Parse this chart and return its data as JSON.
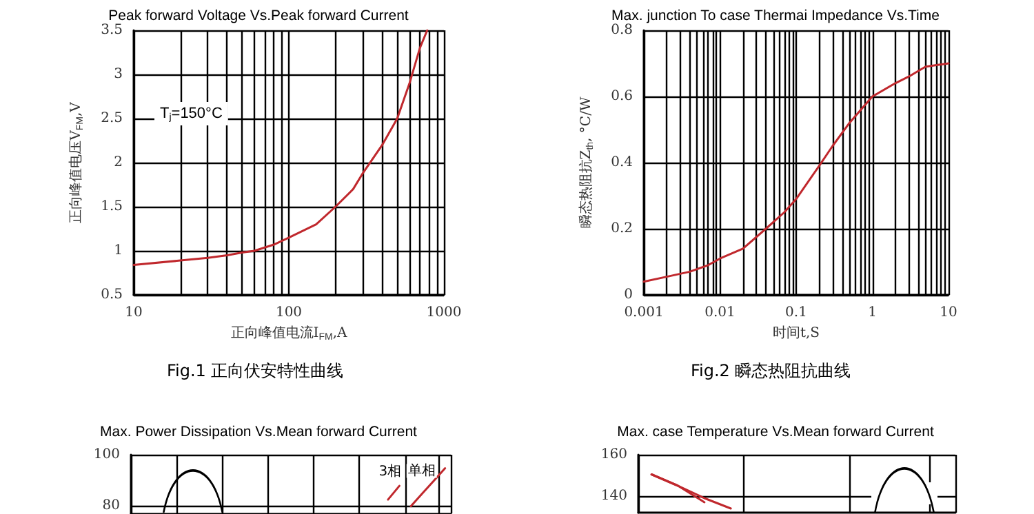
{
  "chart_data": [
    {
      "type": "line",
      "title": "Peak forward Voltage Vs.Peak forward Current",
      "xlabel": "正向峰值电流I$_{FM}$,A",
      "ylabel": "正向峰值电压V$_{FM}$,V",
      "annotations": [
        "T$_{j}$=150°C",
        "Fig.1 正向伏安特性曲线"
      ],
      "log": "x",
      "grid": true,
      "marker": "none",
      "xlim": [
        10,
        1000
      ],
      "xticks": [
        10,
        {
          "value": 20,
          "label": null
        },
        {
          "value": 30,
          "label": null
        },
        {
          "value": 40,
          "label": null
        },
        {
          "value": 50,
          "label": null
        },
        {
          "value": 60,
          "label": null
        },
        {
          "value": 70,
          "label": null
        },
        {
          "value": 80,
          "label": null
        },
        {
          "value": 90,
          "label": null
        },
        100,
        {
          "value": 200,
          "label": null
        },
        {
          "value": 300,
          "label": null
        },
        {
          "value": 400,
          "label": null
        },
        {
          "value": 500,
          "label": null
        },
        {
          "value": 600,
          "label": null
        },
        {
          "value": 700,
          "label": null
        },
        {
          "value": 800,
          "label": null
        },
        {
          "value": 900,
          "label": null
        },
        1000
      ],
      "ylim": [
        0.5,
        3.5
      ],
      "yticks": [
        0.5,
        1,
        1.5,
        2,
        2.5,
        3,
        3.5
      ],
      "series": [
        {
          "color": "#c0282d",
          "x": [
            10,
            20,
            30,
            40,
            50,
            60,
            80,
            100,
            150,
            200,
            260,
            300,
            400,
            500,
            600,
            700,
            780
          ],
          "values": [
            0.84,
            0.89,
            0.92,
            0.95,
            0.98,
            1.0,
            1.07,
            1.15,
            1.3,
            1.5,
            1.7,
            1.88,
            2.2,
            2.5,
            2.9,
            3.3,
            3.5
          ]
        }
      ]
    },
    {
      "type": "line",
      "title": "Max. junction To case Thermai Impedance Vs.Time",
      "xlabel": "时间t,S",
      "ylabel": "瞬态热阻抗Z$_{th}$, °C/W",
      "annotations": [
        "Fig.2 瞬态热阻抗曲线"
      ],
      "log": "x",
      "grid": true,
      "marker": "none",
      "xlim": [
        0.001,
        10
      ],
      "xticks": [
        0.001,
        {
          "value": 0.002,
          "label": null
        },
        {
          "value": 0.003,
          "label": null
        },
        {
          "value": 0.004,
          "label": null
        },
        {
          "value": 0.005,
          "label": null
        },
        {
          "value": 0.006,
          "label": null
        },
        {
          "value": 0.007,
          "label": null
        },
        {
          "value": 0.008,
          "label": null
        },
        {
          "value": 0.009,
          "label": null
        },
        0.01,
        {
          "value": 0.02,
          "label": null
        },
        {
          "value": 0.03,
          "label": null
        },
        {
          "value": 0.04,
          "label": null
        },
        {
          "value": 0.05,
          "label": null
        },
        {
          "value": 0.06,
          "label": null
        },
        {
          "value": 0.07,
          "label": null
        },
        {
          "value": 0.08,
          "label": null
        },
        {
          "value": 0.09,
          "label": null
        },
        0.1,
        {
          "value": 0.2,
          "label": null
        },
        {
          "value": 0.3,
          "label": null
        },
        {
          "value": 0.4,
          "label": null
        },
        {
          "value": 0.5,
          "label": null
        },
        {
          "value": 0.6,
          "label": null
        },
        {
          "value": 0.7,
          "label": null
        },
        {
          "value": 0.8,
          "label": null
        },
        {
          "value": 0.9,
          "label": null
        },
        1,
        {
          "value": 2,
          "label": null
        },
        {
          "value": 3,
          "label": null
        },
        {
          "value": 4,
          "label": null
        },
        {
          "value": 5,
          "label": null
        },
        {
          "value": 6,
          "label": null
        },
        {
          "value": 7,
          "label": null
        },
        {
          "value": 8,
          "label": null
        },
        {
          "value": 9,
          "label": null
        },
        10
      ],
      "ylim": [
        0,
        0.8
      ],
      "yticks": [
        0,
        0.2,
        0.4,
        0.6,
        0.8
      ],
      "series": [
        {
          "color": "#c0282d",
          "x": [
            0.001,
            0.002,
            0.004,
            0.007,
            0.01,
            0.02,
            0.04,
            0.07,
            0.1,
            0.2,
            0.3,
            0.5,
            1,
            2,
            3,
            5,
            10
          ],
          "values": [
            0.04,
            0.055,
            0.07,
            0.09,
            0.11,
            0.14,
            0.2,
            0.25,
            0.29,
            0.39,
            0.45,
            0.52,
            0.6,
            0.64,
            0.66,
            0.69,
            0.7
          ]
        }
      ]
    },
    {
      "type": "line",
      "title": "Max. Power Dissipation Vs.Mean forward Current",
      "grid": true,
      "marker": "none",
      "tick_labels": "y",
      "categories": [
        null,
        null,
        null,
        null,
        null,
        null,
        null,
        null,
        null,
        null,
        null,
        null,
        null,
        null,
        null,
        null,
        null,
        null,
        null,
        null,
        null,
        null,
        null,
        null,
        null,
        null,
        null,
        null
      ],
      "ylim": [
        77,
        100
      ],
      "yticks": [
        80,
        100
      ],
      "series": [
        {
          "name": "3相",
          "color": "#c0282d",
          "values": [
            null,
            null,
            null,
            null,
            null,
            null,
            null,
            null,
            null,
            null,
            null,
            null,
            null,
            null,
            null,
            null,
            null,
            null,
            null,
            null,
            null,
            null,
            82.4,
            87.8,
            null,
            null,
            null,
            null
          ]
        },
        {
          "name": "单相",
          "color": "#c0282d",
          "values": [
            null,
            null,
            null,
            null,
            null,
            null,
            null,
            null,
            null,
            null,
            null,
            null,
            null,
            null,
            null,
            null,
            null,
            null,
            null,
            null,
            null,
            null,
            null,
            null,
            79.8,
            84.8,
            89.7,
            94.7
          ]
        }
      ]
    },
    {
      "type": "line",
      "title": "Max. case Temperature Vs.Mean forward Current",
      "grid": true,
      "marker": "none",
      "tick_labels": "y",
      "categories": [
        null,
        null,
        null,
        null,
        null,
        null,
        null,
        null,
        null,
        null,
        null,
        null
      ],
      "ylim": [
        132,
        160
      ],
      "yticks": [
        140,
        160
      ],
      "series": [
        {
          "color": "#c0282d",
          "values": [
            150.5,
            145,
            139,
            134,
            null,
            null,
            null,
            null,
            null,
            null,
            null,
            null
          ]
        },
        {
          "color": "#c0282d",
          "values": [
            150.5,
            145,
            137,
            null,
            null,
            null,
            null,
            null,
            null,
            null,
            null,
            null
          ]
        }
      ]
    }
  ]
}
